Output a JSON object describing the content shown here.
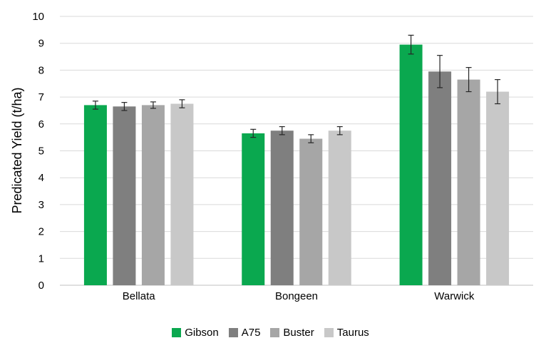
{
  "chart_data": {
    "type": "bar",
    "categories": [
      "Bellata",
      "Bongeen",
      "Warwick"
    ],
    "series": [
      {
        "name": "Gibson",
        "color": "#0aa84f",
        "values": [
          6.7,
          5.65,
          8.95
        ],
        "errors": [
          0.15,
          0.15,
          0.35
        ]
      },
      {
        "name": "A75",
        "color": "#7f7f7f",
        "values": [
          6.65,
          5.75,
          7.95
        ],
        "errors": [
          0.15,
          0.15,
          0.6
        ]
      },
      {
        "name": "Buster",
        "color": "#a6a6a6",
        "values": [
          6.7,
          5.45,
          7.65
        ],
        "errors": [
          0.12,
          0.15,
          0.45
        ]
      },
      {
        "name": "Taurus",
        "color": "#c8c8c8",
        "values": [
          6.75,
          5.75,
          7.2
        ],
        "errors": [
          0.15,
          0.15,
          0.45
        ]
      }
    ],
    "ylabel": "Predicated Yield (t/ha)",
    "xlabel": "",
    "ylim": [
      0,
      10
    ],
    "yticks": [
      "0",
      "1",
      "2",
      "3",
      "4",
      "5",
      "6",
      "7",
      "8",
      "9",
      "10"
    ],
    "grid": true,
    "legend_position": "bottom"
  }
}
